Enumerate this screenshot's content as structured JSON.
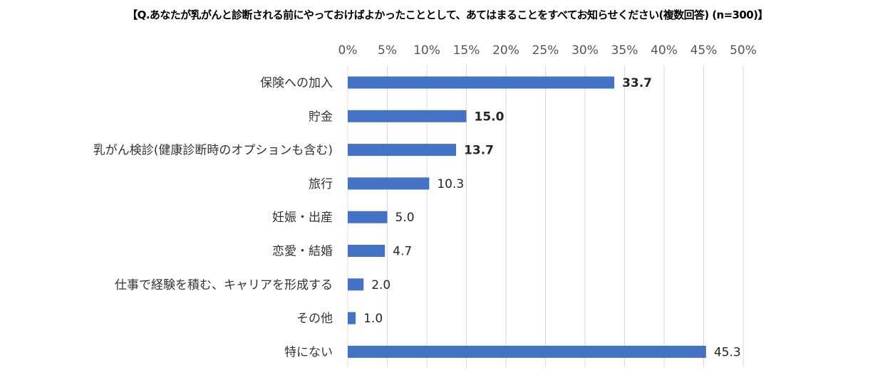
{
  "chart_data": {
    "type": "bar",
    "orientation": "horizontal",
    "title": "【Q.あなたが乳がんと診断される前にやっておけばよかったこととして、あてはまることをすべてお知らせください(複数回答) (n=300)】",
    "categories": [
      "保険への加入",
      "貯金",
      "乳がん検診(健康診断時のオプションも含む)",
      "旅行",
      "妊娠・出産",
      "恋愛・結婚",
      "仕事で経験を積む、キャリアを形成する",
      "その他",
      "特にない"
    ],
    "values": [
      33.7,
      15.0,
      13.7,
      10.3,
      5.0,
      4.7,
      2.0,
      1.0,
      45.3
    ],
    "value_labels": [
      "33.7",
      "15.0",
      "13.7",
      "10.3",
      "5.0",
      "4.7",
      "2.0",
      "1.0",
      "45.3"
    ],
    "highlighted_value_labels": [
      0
    ],
    "bold_value_labels": [
      0,
      1,
      2
    ],
    "x_ticks": [
      "0%",
      "5%",
      "10%",
      "15%",
      "20%",
      "25%",
      "30%",
      "35%",
      "40%",
      "45%",
      "50%"
    ],
    "xlim": [
      0,
      50
    ],
    "xlabel": "",
    "ylabel": "",
    "axis_position": "top",
    "grid": true,
    "colors": {
      "bar": "#4472C4",
      "grid": "#D9D9D9",
      "highlight_label": "#FF0000",
      "label": "#262626"
    }
  }
}
